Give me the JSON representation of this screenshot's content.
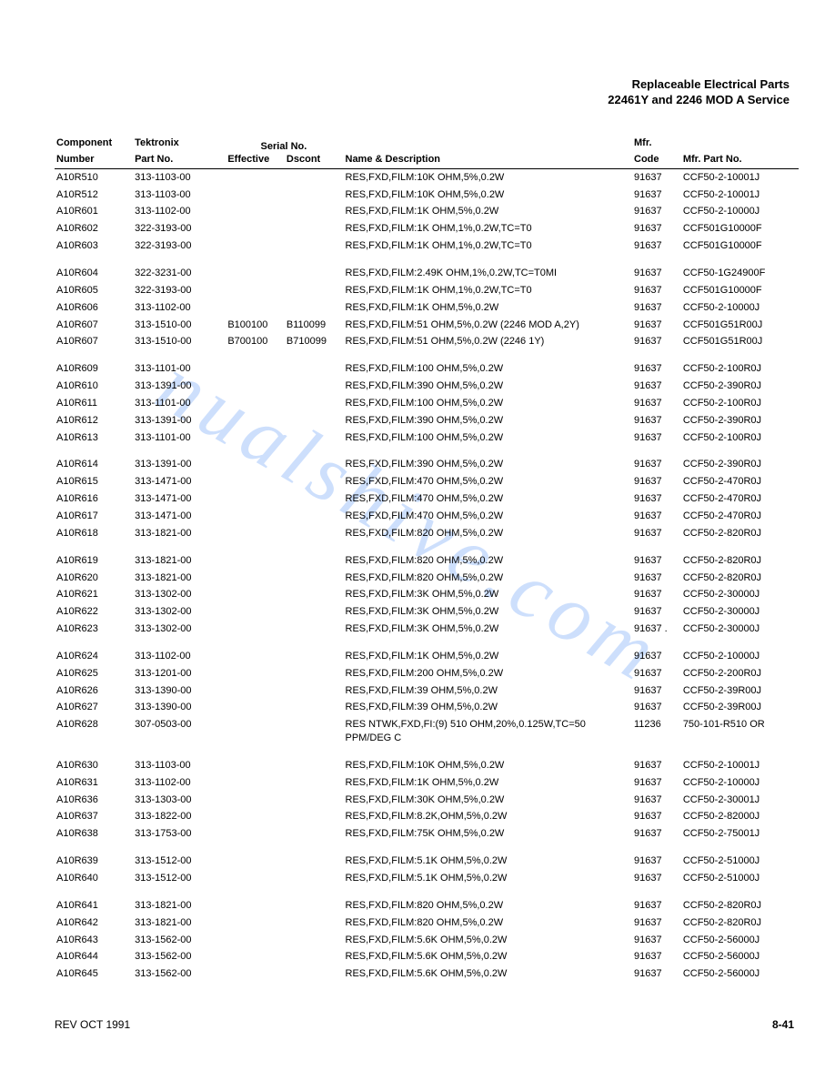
{
  "header": {
    "line1": "Replaceable Electrical Parts",
    "line2": "22461Y and 2246 MOD A Service"
  },
  "columns": {
    "component": "Component",
    "number": "Number",
    "tektronix": "Tektronix",
    "partNo": "Part No.",
    "serialNo": "Serial No.",
    "effective": "Effective",
    "dscont": "Dscont",
    "nameDesc": "Name & Description",
    "mfr": "Mfr.",
    "code": "Code",
    "mfrPart": "Mfr. Part No."
  },
  "rows": [
    {
      "comp": "A10R510",
      "part": "313-1103-00",
      "eff": "",
      "dsc": "",
      "desc": "RES,FXD,FILM:10K OHM,5%,0.2W",
      "mfr": "91637",
      "mpn": "CCF50-2-10001J"
    },
    {
      "comp": "A10R512",
      "part": "313-1103-00",
      "eff": "",
      "dsc": "",
      "desc": "RES,FXD,FILM:10K OHM,5%,0.2W",
      "mfr": "91637",
      "mpn": "CCF50-2-10001J"
    },
    {
      "comp": "A10R601",
      "part": "313-1102-00",
      "eff": "",
      "dsc": "",
      "desc": "RES,FXD,FILM:1K OHM,5%,0.2W",
      "mfr": "91637",
      "mpn": "CCF50-2-10000J"
    },
    {
      "comp": "A10R602",
      "part": "322-3193-00",
      "eff": "",
      "dsc": "",
      "desc": "RES,FXD,FILM:1K OHM,1%,0.2W,TC=T0",
      "mfr": "91637",
      "mpn": "CCF501G10000F"
    },
    {
      "comp": "A10R603",
      "part": "322-3193-00",
      "eff": "",
      "dsc": "",
      "desc": "RES,FXD,FILM:1K OHM,1%,0.2W,TC=T0",
      "mfr": "91637",
      "mpn": "CCF501G10000F"
    },
    {
      "spacer": true
    },
    {
      "comp": "A10R604",
      "part": "322-3231-00",
      "eff": "",
      "dsc": "",
      "desc": "RES,FXD,FILM:2.49K OHM,1%,0.2W,TC=T0MI",
      "mfr": "91637",
      "mpn": "CCF50-1G24900F"
    },
    {
      "comp": "A10R605",
      "part": "322-3193-00",
      "eff": "",
      "dsc": "",
      "desc": "RES,FXD,FILM:1K OHM,1%,0.2W,TC=T0",
      "mfr": "91637",
      "mpn": "CCF501G10000F"
    },
    {
      "comp": "A10R606",
      "part": "313-1102-00",
      "eff": "",
      "dsc": "",
      "desc": "RES,FXD,FILM:1K OHM,5%,0.2W",
      "mfr": "91637",
      "mpn": "CCF50-2-10000J"
    },
    {
      "comp": "A10R607",
      "part": "313-1510-00",
      "eff": "B100100",
      "dsc": "B110099",
      "desc": "RES,FXD,FILM:51 OHM,5%,0.2W (2246 MOD A,2Y)",
      "mfr": "91637",
      "mpn": "CCF501G51R00J"
    },
    {
      "comp": "A10R607",
      "part": "313-1510-00",
      "eff": "B700100",
      "dsc": "B710099",
      "desc": "RES,FXD,FILM:51 OHM,5%,0.2W (2246 1Y)",
      "mfr": "91637",
      "mpn": "CCF501G51R00J"
    },
    {
      "spacer": true
    },
    {
      "comp": "A10R609",
      "part": "313-1101-00",
      "eff": "",
      "dsc": "",
      "desc": "RES,FXD,FILM:100 OHM,5%,0.2W",
      "mfr": "91637",
      "mpn": "CCF50-2-100R0J"
    },
    {
      "comp": "A10R610",
      "part": "313-1391-00",
      "eff": "",
      "dsc": "",
      "desc": "RES,FXD,FILM:390 OHM,5%,0.2W",
      "mfr": "91637",
      "mpn": "CCF50-2-390R0J"
    },
    {
      "comp": "A10R611",
      "part": "313-1101-00",
      "eff": "",
      "dsc": "",
      "desc": "RES,FXD,FILM:100 OHM,5%,0.2W",
      "mfr": "91637",
      "mpn": "CCF50-2-100R0J"
    },
    {
      "comp": "A10R612",
      "part": "313-1391-00",
      "eff": "",
      "dsc": "",
      "desc": "RES,FXD,FILM:390 OHM,5%,0.2W",
      "mfr": "91637",
      "mpn": "CCF50-2-390R0J"
    },
    {
      "comp": "A10R613",
      "part": "313-1101-00",
      "eff": "",
      "dsc": "",
      "desc": "RES,FXD,FILM:100 OHM,5%,0.2W",
      "mfr": "91637",
      "mpn": "CCF50-2-100R0J"
    },
    {
      "spacer": true
    },
    {
      "comp": "A10R614",
      "part": "313-1391-00",
      "eff": "",
      "dsc": "",
      "desc": "RES,FXD,FILM:390 OHM,5%,0.2W",
      "mfr": "91637",
      "mpn": "CCF50-2-390R0J"
    },
    {
      "comp": "A10R615",
      "part": "313-1471-00",
      "eff": "",
      "dsc": "",
      "desc": "RES,FXD,FILM:470 OHM,5%,0.2W",
      "mfr": "91637",
      "mpn": "CCF50-2-470R0J"
    },
    {
      "comp": "A10R616",
      "part": "313-1471-00",
      "eff": "",
      "dsc": "",
      "desc": "RES,FXD,FILM:470 OHM,5%,0.2W",
      "mfr": "91637",
      "mpn": "CCF50-2-470R0J"
    },
    {
      "comp": "A10R617",
      "part": "313-1471-00",
      "eff": "",
      "dsc": "",
      "desc": "RES,FXD,FILM:470 OHM,5%,0.2W",
      "mfr": "91637",
      "mpn": "CCF50-2-470R0J"
    },
    {
      "comp": "A10R618",
      "part": "313-1821-00",
      "eff": "",
      "dsc": "",
      "desc": "RES,FXD,FILM:820 OHM,5%,0.2W",
      "mfr": "91637",
      "mpn": "CCF50-2-820R0J"
    },
    {
      "spacer": true
    },
    {
      "comp": "A10R619",
      "part": "313-1821-00",
      "eff": "",
      "dsc": "",
      "desc": "RES,FXD,FILM:820 OHM,5%,0.2W",
      "mfr": "91637",
      "mpn": "CCF50-2-820R0J"
    },
    {
      "comp": "A10R620",
      "part": "313-1821-00",
      "eff": "",
      "dsc": "",
      "desc": "RES,FXD,FILM:820 OHM,5%,0.2W",
      "mfr": "91637",
      "mpn": "CCF50-2-820R0J"
    },
    {
      "comp": "A10R621",
      "part": "313-1302-00",
      "eff": "",
      "dsc": "",
      "desc": "RES,FXD,FILM:3K OHM,5%,0.2W",
      "mfr": "91637",
      "mpn": "CCF50-2-30000J"
    },
    {
      "comp": "A10R622",
      "part": "313-1302-00",
      "eff": "",
      "dsc": "",
      "desc": "RES,FXD,FILM:3K OHM,5%,0.2W",
      "mfr": "91637",
      "mpn": "CCF50-2-30000J"
    },
    {
      "comp": "A10R623",
      "part": "313-1302-00",
      "eff": "",
      "dsc": "",
      "desc": "RES,FXD,FILM:3K OHM,5%,0.2W",
      "mfr": "91637 .",
      "mpn": "CCF50-2-30000J"
    },
    {
      "spacer": true
    },
    {
      "comp": "A10R624",
      "part": "313-1102-00",
      "eff": "",
      "dsc": "",
      "desc": "RES,FXD,FILM:1K OHM,5%,0.2W",
      "mfr": "91637",
      "mpn": "CCF50-2-10000J"
    },
    {
      "comp": "A10R625",
      "part": "313-1201-00",
      "eff": "",
      "dsc": "",
      "desc": "RES,FXD,FILM:200 OHM,5%,0.2W",
      "mfr": "91637",
      "mpn": "CCF50-2-200R0J"
    },
    {
      "comp": "A10R626",
      "part": "313-1390-00",
      "eff": "",
      "dsc": "",
      "desc": "RES,FXD,FILM:39 OHM,5%,0.2W",
      "mfr": "91637",
      "mpn": "CCF50-2-39R00J"
    },
    {
      "comp": "A10R627",
      "part": "313-1390-00",
      "eff": "",
      "dsc": "",
      "desc": "RES,FXD,FILM:39 OHM,5%,0.2W",
      "mfr": "91637",
      "mpn": "CCF50-2-39R00J"
    },
    {
      "comp": "A10R628",
      "part": "307-0503-00",
      "eff": "",
      "dsc": "",
      "desc": "RES NTWK,FXD,FI:(9) 510 OHM,20%,0.125W,TC=50 PPM/DEG C",
      "mfr": "11236",
      "mpn": "750-101-R510 OR"
    },
    {
      "spacer": true
    },
    {
      "comp": "A10R630",
      "part": "313-1103-00",
      "eff": "",
      "dsc": "",
      "desc": "RES,FXD,FILM:10K OHM,5%,0.2W",
      "mfr": "91637",
      "mpn": "CCF50-2-10001J"
    },
    {
      "comp": "A10R631",
      "part": "313-1102-00",
      "eff": "",
      "dsc": "",
      "desc": "RES,FXD,FILM:1K OHM,5%,0.2W",
      "mfr": "91637",
      "mpn": "CCF50-2-10000J"
    },
    {
      "comp": "A10R636",
      "part": "313-1303-00",
      "eff": "",
      "dsc": "",
      "desc": "RES,FXD,FILM:30K OHM,5%,0.2W",
      "mfr": "91637",
      "mpn": "CCF50-2-30001J"
    },
    {
      "comp": "A10R637",
      "part": "313-1822-00",
      "eff": "",
      "dsc": "",
      "desc": "RES,FXD,FILM:8.2K,OHM,5%,0.2W",
      "mfr": "91637",
      "mpn": "CCF50-2-82000J"
    },
    {
      "comp": "A10R638",
      "part": "313-1753-00",
      "eff": "",
      "dsc": "",
      "desc": "RES,FXD,FILM:75K OHM,5%,0.2W",
      "mfr": "91637",
      "mpn": "CCF50-2-75001J"
    },
    {
      "spacer": true
    },
    {
      "comp": "A10R639",
      "part": "313-1512-00",
      "eff": "",
      "dsc": "",
      "desc": "RES,FXD,FILM:5.1K OHM,5%,0.2W",
      "mfr": "91637",
      "mpn": "CCF50-2-51000J"
    },
    {
      "comp": "A10R640",
      "part": "313-1512-00",
      "eff": "",
      "dsc": "",
      "desc": "RES,FXD,FILM:5.1K OHM,5%,0.2W",
      "mfr": "91637",
      "mpn": "CCF50-2-51000J"
    },
    {
      "spacer": true
    },
    {
      "comp": "A10R641",
      "part": "313-1821-00",
      "eff": "",
      "dsc": "",
      "desc": "RES,FXD,FILM:820 OHM,5%,0.2W",
      "mfr": "91637",
      "mpn": "CCF50-2-820R0J"
    },
    {
      "comp": "A10R642",
      "part": "313-1821-00",
      "eff": "",
      "dsc": "",
      "desc": "RES,FXD,FILM:820 OHM,5%,0.2W",
      "mfr": "91637",
      "mpn": "CCF50-2-820R0J"
    },
    {
      "comp": "A10R643",
      "part": "313-1562-00",
      "eff": "",
      "dsc": "",
      "desc": "RES,FXD,FILM:5.6K OHM,5%,0.2W",
      "mfr": "91637",
      "mpn": "CCF50-2-56000J"
    },
    {
      "comp": "A10R644",
      "part": "313-1562-00",
      "eff": "",
      "dsc": "",
      "desc": "RES,FXD,FILM:5.6K OHM,5%,0.2W",
      "mfr": "91637",
      "mpn": "CCF50-2-56000J"
    },
    {
      "comp": "A10R645",
      "part": "313-1562-00",
      "eff": "",
      "dsc": "",
      "desc": "RES,FXD,FILM:5.6K OHM,5%,0.2W",
      "mfr": "91637",
      "mpn": "CCF50-2-56000J"
    }
  ],
  "footer": {
    "rev": "REV OCT 1991",
    "page": "8-41"
  },
  "watermark": "nualshive.com"
}
